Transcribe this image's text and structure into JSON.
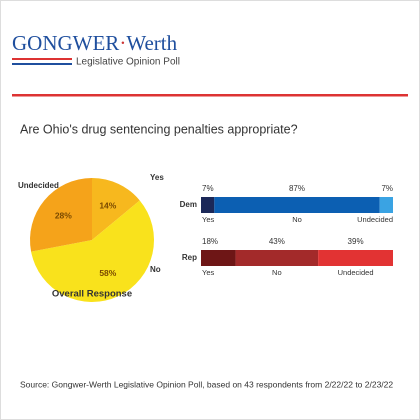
{
  "header": {
    "brand_left": "GONGWER",
    "brand_right": "Werth",
    "subtitle": "Legislative Opinion Poll"
  },
  "title": "Are Ohio's drug sentencing penalties appropriate?",
  "chart_data": [
    {
      "type": "pie",
      "title": "Overall Response",
      "categories": [
        "Yes",
        "No",
        "Undecided"
      ],
      "values": [
        14,
        58,
        28
      ],
      "value_labels": [
        "14%",
        "58%",
        "28%"
      ],
      "colors": [
        "#f7b81e",
        "#f9e21c",
        "#f5a31a"
      ]
    },
    {
      "type": "stacked_bar",
      "categories": [
        "Dem",
        "Rep"
      ],
      "series": [
        {
          "name": "Yes",
          "values": [
            7,
            18
          ],
          "value_labels": [
            "7%",
            "18%"
          ],
          "colors": [
            "#1b2858",
            "#6e1616"
          ]
        },
        {
          "name": "No",
          "values": [
            87,
            43
          ],
          "value_labels": [
            "87%",
            "43%"
          ],
          "colors": [
            "#0c5fb2",
            "#a32a2a"
          ]
        },
        {
          "name": "Undecided",
          "values": [
            7,
            39
          ],
          "value_labels": [
            "7%",
            "39%"
          ],
          "colors": [
            "#3aa3e3",
            "#e23333"
          ]
        }
      ]
    }
  ],
  "source": "Source: Gongwer-Werth Legislative Opinion Poll, based on 43 respondents from 2/22/22 to 2/23/22"
}
